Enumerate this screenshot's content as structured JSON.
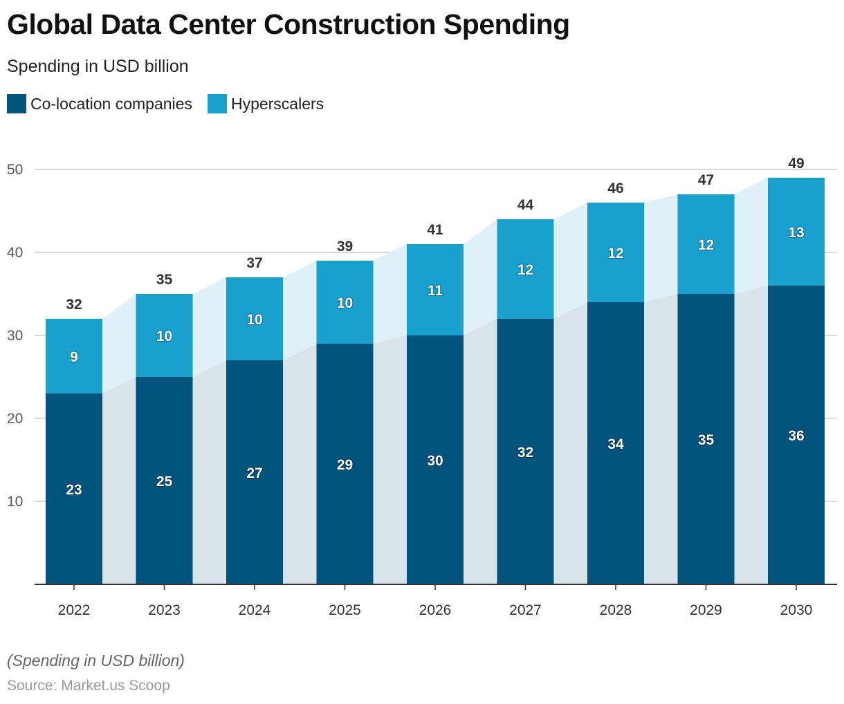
{
  "title": "Global Data Center Construction Spending",
  "subtitle": "Spending in USD billion",
  "note": "(Spending in USD billion)",
  "source": "Source: Market.us Scoop",
  "chart_data": {
    "type": "bar",
    "stacked": true,
    "categories": [
      "2022",
      "2023",
      "2024",
      "2025",
      "2026",
      "2027",
      "2028",
      "2029",
      "2030"
    ],
    "series": [
      {
        "name": "Co-location companies",
        "color": "#00547b",
        "values": [
          23,
          25,
          27,
          29,
          30,
          32,
          34,
          35,
          36
        ]
      },
      {
        "name": "Hyperscalers",
        "color": "#19a1cd",
        "values": [
          9,
          10,
          10,
          10,
          11,
          12,
          12,
          12,
          13
        ]
      }
    ],
    "totals": [
      32,
      35,
      37,
      39,
      41,
      44,
      46,
      47,
      49
    ],
    "ylim": [
      0,
      50
    ],
    "yticks": [
      10,
      20,
      30,
      40,
      50
    ],
    "grid": true,
    "legend": "top-left",
    "area_colors": [
      "#d9e3ea",
      "#dff0f8"
    ]
  }
}
